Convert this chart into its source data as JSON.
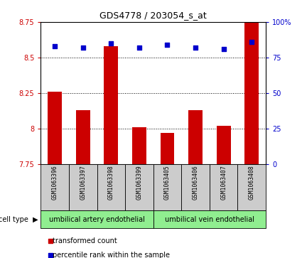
{
  "title": "GDS4778 / 203054_s_at",
  "samples": [
    "GSM1063396",
    "GSM1063397",
    "GSM1063398",
    "GSM1063399",
    "GSM1063405",
    "GSM1063406",
    "GSM1063407",
    "GSM1063408"
  ],
  "bar_values": [
    8.26,
    8.13,
    8.58,
    8.01,
    7.97,
    8.13,
    8.02,
    8.88
  ],
  "percentile_values": [
    83,
    82,
    85,
    82,
    84,
    82,
    81,
    86
  ],
  "bar_color": "#cc0000",
  "dot_color": "#0000cc",
  "ylim_left": [
    7.75,
    8.75
  ],
  "ylim_right": [
    0,
    100
  ],
  "yticks_left": [
    7.75,
    8.0,
    8.25,
    8.5,
    8.75
  ],
  "ytick_labels_left": [
    "7.75",
    "8",
    "8.25",
    "8.5",
    "8.75"
  ],
  "yticks_right": [
    0,
    25,
    50,
    75,
    100
  ],
  "ytick_labels_right": [
    "0",
    "25",
    "50",
    "75",
    "100%"
  ],
  "grid_values": [
    8.0,
    8.25,
    8.5
  ],
  "cell_groups": [
    {
      "label": "umbilical artery endothelial",
      "color": "#90ee90",
      "start": 0,
      "end": 4
    },
    {
      "label": "umbilical vein endothelial",
      "color": "#90ee90",
      "start": 4,
      "end": 8
    }
  ],
  "cell_type_label": "cell type",
  "legend_items": [
    {
      "color": "#cc0000",
      "label": "transformed count"
    },
    {
      "color": "#0000cc",
      "label": "percentile rank within the sample"
    }
  ],
  "bg_color": "#ffffff",
  "tick_area_color": "#cccccc",
  "bar_width": 0.5
}
